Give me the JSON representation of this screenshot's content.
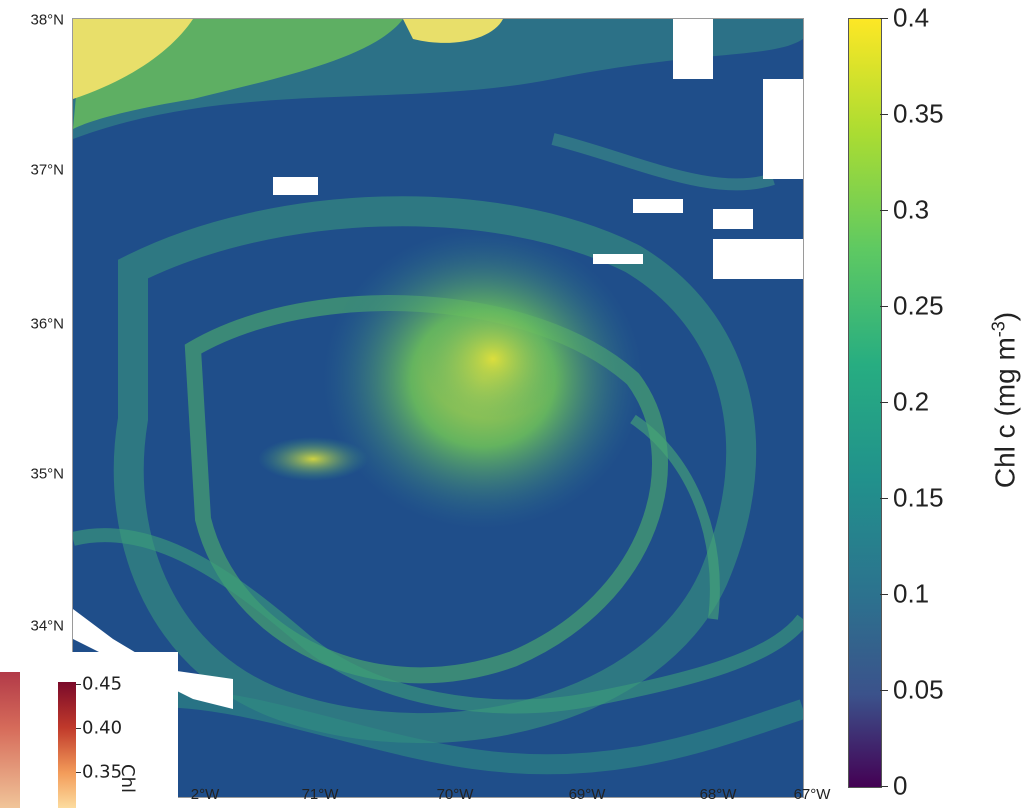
{
  "map": {
    "lat_labels": [
      "38°N",
      "37°N",
      "36°N",
      "35°N",
      "34°N"
    ],
    "lon_labels": [
      "2°W",
      "71°W",
      "70°W",
      "69°W",
      "68°W",
      "67°W"
    ]
  },
  "colorbar": {
    "title": "Chl c (mg m-3)",
    "ticks": [
      "0",
      "0.05",
      "0.1",
      "0.15",
      "0.2",
      "0.25",
      "0.3",
      "0.35",
      "0.4"
    ],
    "colors": [
      "#440154",
      "#3b528b",
      "#21918c",
      "#5ec962",
      "#fde725"
    ]
  },
  "inset": {
    "title": "Chl",
    "ticks": [
      "0.45",
      "0.40",
      "0.35"
    ]
  }
}
